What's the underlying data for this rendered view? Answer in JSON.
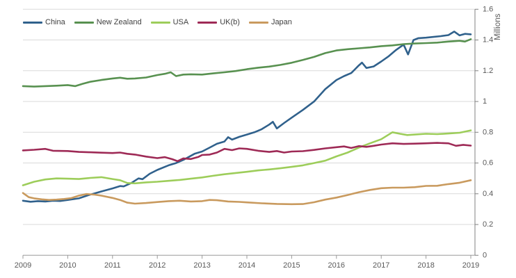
{
  "chart_data": {
    "type": "line",
    "title": "",
    "ylabel": "Millions",
    "ylim": [
      0,
      1.6
    ],
    "xlim": [
      2009,
      2019
    ],
    "grid": "horizontal",
    "legend_position": "top-left",
    "y_axis_side": "right",
    "y_ticks": [
      {
        "value": 0,
        "label": "0"
      },
      {
        "value": 0.2,
        "label": "0.2"
      },
      {
        "value": 0.4,
        "label": "0.4"
      },
      {
        "value": 0.6,
        "label": "0.6"
      },
      {
        "value": 0.8,
        "label": "0.8"
      },
      {
        "value": 1,
        "label": "1"
      },
      {
        "value": 1.2,
        "label": "1.2"
      },
      {
        "value": 1.4,
        "label": "1.4"
      },
      {
        "value": 1.6,
        "label": "1.6"
      }
    ],
    "x_ticks": [
      {
        "value": 2009,
        "label": "2009"
      },
      {
        "value": 2010,
        "label": "2010"
      },
      {
        "value": 2011,
        "label": "2011"
      },
      {
        "value": 2012,
        "label": "2012"
      },
      {
        "value": 2013,
        "label": "2013"
      },
      {
        "value": 2014,
        "label": "2014"
      },
      {
        "value": 2015,
        "label": "2015"
      },
      {
        "value": 2016,
        "label": "2016"
      },
      {
        "value": 2017,
        "label": "2017"
      },
      {
        "value": 2018,
        "label": "2018"
      },
      {
        "value": 2019,
        "label": "2019"
      }
    ],
    "series": [
      {
        "name": "China",
        "color": "#30618c",
        "points": [
          [
            2009.0,
            0.355
          ],
          [
            2009.17,
            0.348
          ],
          [
            2009.33,
            0.352
          ],
          [
            2009.5,
            0.35
          ],
          [
            2009.67,
            0.355
          ],
          [
            2009.83,
            0.353
          ],
          [
            2010.0,
            0.36
          ],
          [
            2010.25,
            0.37
          ],
          [
            2010.45,
            0.39
          ],
          [
            2010.75,
            0.415
          ],
          [
            2011.0,
            0.435
          ],
          [
            2011.17,
            0.45
          ],
          [
            2011.25,
            0.448
          ],
          [
            2011.42,
            0.47
          ],
          [
            2011.58,
            0.5
          ],
          [
            2011.67,
            0.495
          ],
          [
            2011.83,
            0.53
          ],
          [
            2012.0,
            0.555
          ],
          [
            2012.25,
            0.585
          ],
          [
            2012.42,
            0.6
          ],
          [
            2012.58,
            0.62
          ],
          [
            2012.83,
            0.66
          ],
          [
            2013.0,
            0.675
          ],
          [
            2013.17,
            0.7
          ],
          [
            2013.33,
            0.725
          ],
          [
            2013.5,
            0.74
          ],
          [
            2013.58,
            0.768
          ],
          [
            2013.67,
            0.752
          ],
          [
            2013.83,
            0.77
          ],
          [
            2014.0,
            0.785
          ],
          [
            2014.17,
            0.8
          ],
          [
            2014.33,
            0.82
          ],
          [
            2014.5,
            0.85
          ],
          [
            2014.58,
            0.868
          ],
          [
            2014.67,
            0.825
          ],
          [
            2014.83,
            0.86
          ],
          [
            2015.0,
            0.895
          ],
          [
            2015.25,
            0.945
          ],
          [
            2015.5,
            1.0
          ],
          [
            2015.75,
            1.08
          ],
          [
            2016.0,
            1.14
          ],
          [
            2016.17,
            1.165
          ],
          [
            2016.33,
            1.185
          ],
          [
            2016.5,
            1.235
          ],
          [
            2016.57,
            1.253
          ],
          [
            2016.67,
            1.218
          ],
          [
            2016.83,
            1.228
          ],
          [
            2017.0,
            1.26
          ],
          [
            2017.17,
            1.295
          ],
          [
            2017.33,
            1.335
          ],
          [
            2017.5,
            1.37
          ],
          [
            2017.6,
            1.306
          ],
          [
            2017.72,
            1.4
          ],
          [
            2017.83,
            1.412
          ],
          [
            2018.0,
            1.415
          ],
          [
            2018.17,
            1.42
          ],
          [
            2018.33,
            1.425
          ],
          [
            2018.5,
            1.432
          ],
          [
            2018.63,
            1.455
          ],
          [
            2018.75,
            1.43
          ],
          [
            2018.87,
            1.44
          ],
          [
            2019.0,
            1.437
          ]
        ]
      },
      {
        "name": "New Zealand",
        "color": "#589150",
        "points": [
          [
            2009.0,
            1.1
          ],
          [
            2009.25,
            1.097
          ],
          [
            2009.5,
            1.1
          ],
          [
            2009.75,
            1.103
          ],
          [
            2010.0,
            1.107
          ],
          [
            2010.17,
            1.1
          ],
          [
            2010.33,
            1.115
          ],
          [
            2010.5,
            1.128
          ],
          [
            2010.75,
            1.14
          ],
          [
            2011.0,
            1.15
          ],
          [
            2011.17,
            1.155
          ],
          [
            2011.33,
            1.148
          ],
          [
            2011.5,
            1.15
          ],
          [
            2011.75,
            1.156
          ],
          [
            2012.0,
            1.172
          ],
          [
            2012.17,
            1.18
          ],
          [
            2012.3,
            1.19
          ],
          [
            2012.42,
            1.165
          ],
          [
            2012.58,
            1.175
          ],
          [
            2012.75,
            1.177
          ],
          [
            2013.0,
            1.175
          ],
          [
            2013.25,
            1.183
          ],
          [
            2013.5,
            1.19
          ],
          [
            2013.75,
            1.198
          ],
          [
            2014.0,
            1.21
          ],
          [
            2014.25,
            1.22
          ],
          [
            2014.5,
            1.227
          ],
          [
            2014.75,
            1.238
          ],
          [
            2015.0,
            1.252
          ],
          [
            2015.25,
            1.27
          ],
          [
            2015.5,
            1.29
          ],
          [
            2015.75,
            1.315
          ],
          [
            2016.0,
            1.332
          ],
          [
            2016.25,
            1.34
          ],
          [
            2016.5,
            1.346
          ],
          [
            2016.75,
            1.352
          ],
          [
            2017.0,
            1.36
          ],
          [
            2017.25,
            1.365
          ],
          [
            2017.5,
            1.373
          ],
          [
            2017.75,
            1.377
          ],
          [
            2018.0,
            1.38
          ],
          [
            2018.25,
            1.383
          ],
          [
            2018.5,
            1.39
          ],
          [
            2018.75,
            1.395
          ],
          [
            2018.87,
            1.39
          ],
          [
            2019.0,
            1.405
          ]
        ]
      },
      {
        "name": "USA",
        "color": "#9dcd5a",
        "points": [
          [
            2009.0,
            0.455
          ],
          [
            2009.25,
            0.478
          ],
          [
            2009.5,
            0.493
          ],
          [
            2009.75,
            0.5
          ],
          [
            2010.0,
            0.498
          ],
          [
            2010.25,
            0.496
          ],
          [
            2010.5,
            0.503
          ],
          [
            2010.75,
            0.508
          ],
          [
            2011.0,
            0.496
          ],
          [
            2011.17,
            0.488
          ],
          [
            2011.33,
            0.47
          ],
          [
            2011.5,
            0.468
          ],
          [
            2011.75,
            0.474
          ],
          [
            2012.0,
            0.478
          ],
          [
            2012.25,
            0.484
          ],
          [
            2012.5,
            0.49
          ],
          [
            2012.75,
            0.498
          ],
          [
            2013.0,
            0.506
          ],
          [
            2013.25,
            0.517
          ],
          [
            2013.5,
            0.527
          ],
          [
            2013.75,
            0.535
          ],
          [
            2014.0,
            0.543
          ],
          [
            2014.25,
            0.552
          ],
          [
            2014.5,
            0.558
          ],
          [
            2014.75,
            0.566
          ],
          [
            2015.0,
            0.575
          ],
          [
            2015.25,
            0.585
          ],
          [
            2015.5,
            0.6
          ],
          [
            2015.75,
            0.615
          ],
          [
            2016.0,
            0.643
          ],
          [
            2016.25,
            0.668
          ],
          [
            2016.5,
            0.7
          ],
          [
            2016.75,
            0.728
          ],
          [
            2017.0,
            0.755
          ],
          [
            2017.25,
            0.8
          ],
          [
            2017.42,
            0.79
          ],
          [
            2017.58,
            0.782
          ],
          [
            2017.75,
            0.785
          ],
          [
            2018.0,
            0.79
          ],
          [
            2018.25,
            0.788
          ],
          [
            2018.5,
            0.792
          ],
          [
            2018.75,
            0.797
          ],
          [
            2019.0,
            0.812
          ]
        ]
      },
      {
        "name": "UK(b)",
        "color": "#9e2a56",
        "points": [
          [
            2009.0,
            0.682
          ],
          [
            2009.25,
            0.686
          ],
          [
            2009.5,
            0.692
          ],
          [
            2009.67,
            0.68
          ],
          [
            2010.0,
            0.678
          ],
          [
            2010.25,
            0.672
          ],
          [
            2010.5,
            0.67
          ],
          [
            2010.75,
            0.667
          ],
          [
            2011.0,
            0.665
          ],
          [
            2011.17,
            0.668
          ],
          [
            2011.33,
            0.66
          ],
          [
            2011.5,
            0.655
          ],
          [
            2011.75,
            0.642
          ],
          [
            2012.0,
            0.632
          ],
          [
            2012.17,
            0.638
          ],
          [
            2012.33,
            0.625
          ],
          [
            2012.45,
            0.612
          ],
          [
            2012.58,
            0.63
          ],
          [
            2012.75,
            0.626
          ],
          [
            2012.92,
            0.64
          ],
          [
            2013.0,
            0.652
          ],
          [
            2013.17,
            0.655
          ],
          [
            2013.33,
            0.668
          ],
          [
            2013.5,
            0.692
          ],
          [
            2013.67,
            0.684
          ],
          [
            2013.83,
            0.695
          ],
          [
            2014.0,
            0.692
          ],
          [
            2014.25,
            0.68
          ],
          [
            2014.5,
            0.672
          ],
          [
            2014.67,
            0.678
          ],
          [
            2014.83,
            0.668
          ],
          [
            2015.0,
            0.675
          ],
          [
            2015.25,
            0.677
          ],
          [
            2015.5,
            0.685
          ],
          [
            2015.75,
            0.695
          ],
          [
            2016.0,
            0.703
          ],
          [
            2016.17,
            0.708
          ],
          [
            2016.33,
            0.698
          ],
          [
            2016.5,
            0.71
          ],
          [
            2016.67,
            0.705
          ],
          [
            2016.83,
            0.712
          ],
          [
            2017.0,
            0.72
          ],
          [
            2017.25,
            0.728
          ],
          [
            2017.5,
            0.724
          ],
          [
            2017.75,
            0.726
          ],
          [
            2018.0,
            0.728
          ],
          [
            2018.25,
            0.731
          ],
          [
            2018.5,
            0.728
          ],
          [
            2018.67,
            0.712
          ],
          [
            2018.83,
            0.718
          ],
          [
            2019.0,
            0.713
          ]
        ]
      },
      {
        "name": "Japan",
        "color": "#c99a5e",
        "points": [
          [
            2009.0,
            0.405
          ],
          [
            2009.13,
            0.378
          ],
          [
            2009.25,
            0.37
          ],
          [
            2009.42,
            0.364
          ],
          [
            2009.58,
            0.36
          ],
          [
            2009.75,
            0.362
          ],
          [
            2009.92,
            0.366
          ],
          [
            2010.08,
            0.372
          ],
          [
            2010.25,
            0.388
          ],
          [
            2010.42,
            0.398
          ],
          [
            2010.58,
            0.395
          ],
          [
            2010.75,
            0.388
          ],
          [
            2011.0,
            0.373
          ],
          [
            2011.17,
            0.36
          ],
          [
            2011.33,
            0.342
          ],
          [
            2011.5,
            0.336
          ],
          [
            2011.75,
            0.34
          ],
          [
            2012.0,
            0.346
          ],
          [
            2012.25,
            0.352
          ],
          [
            2012.5,
            0.355
          ],
          [
            2012.75,
            0.35
          ],
          [
            2013.0,
            0.352
          ],
          [
            2013.17,
            0.36
          ],
          [
            2013.33,
            0.358
          ],
          [
            2013.58,
            0.35
          ],
          [
            2013.83,
            0.347
          ],
          [
            2014.0,
            0.344
          ],
          [
            2014.33,
            0.338
          ],
          [
            2014.67,
            0.334
          ],
          [
            2015.0,
            0.332
          ],
          [
            2015.25,
            0.333
          ],
          [
            2015.5,
            0.345
          ],
          [
            2015.75,
            0.362
          ],
          [
            2016.0,
            0.375
          ],
          [
            2016.25,
            0.392
          ],
          [
            2016.5,
            0.41
          ],
          [
            2016.75,
            0.425
          ],
          [
            2017.0,
            0.436
          ],
          [
            2017.25,
            0.44
          ],
          [
            2017.5,
            0.44
          ],
          [
            2017.75,
            0.443
          ],
          [
            2018.0,
            0.451
          ],
          [
            2018.25,
            0.452
          ],
          [
            2018.5,
            0.463
          ],
          [
            2018.75,
            0.472
          ],
          [
            2019.0,
            0.488
          ]
        ]
      }
    ]
  },
  "axes_style": {
    "gridline_color": "#d9d9d9",
    "zero_line_color": "#9a9a9a",
    "axis_line_color": "#808080",
    "tick_color": "#9a9a9a",
    "label_color": "#595959",
    "legend_text_color": "#3f3f3f",
    "background": "#ffffff"
  }
}
